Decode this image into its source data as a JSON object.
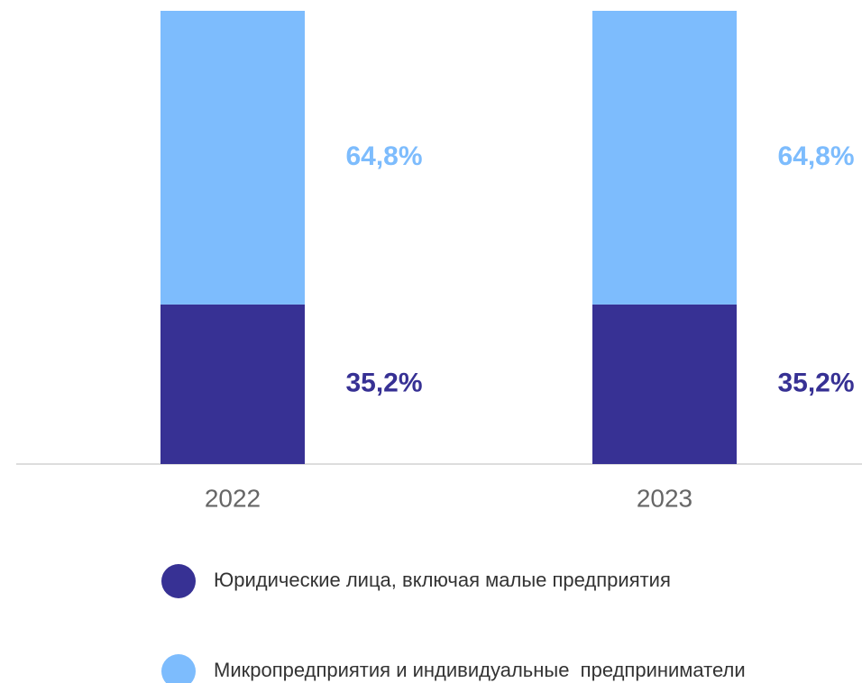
{
  "chart_data": {
    "type": "stacked_bar",
    "categories": [
      "2022",
      "2023"
    ],
    "series": [
      {
        "name": "Юридические лица, включая малые предприятия",
        "color": "#373194",
        "values": [
          35.2,
          35.2
        ],
        "value_labels": [
          "35,2%",
          "35,2%"
        ]
      },
      {
        "name": "Микропредприятия и индивидуальные  предприниматели",
        "color": "#7dbcfd",
        "values": [
          64.8,
          64.8
        ],
        "value_labels": [
          "64,8%",
          "64,8%"
        ]
      }
    ],
    "ylim": [
      0,
      100
    ]
  }
}
